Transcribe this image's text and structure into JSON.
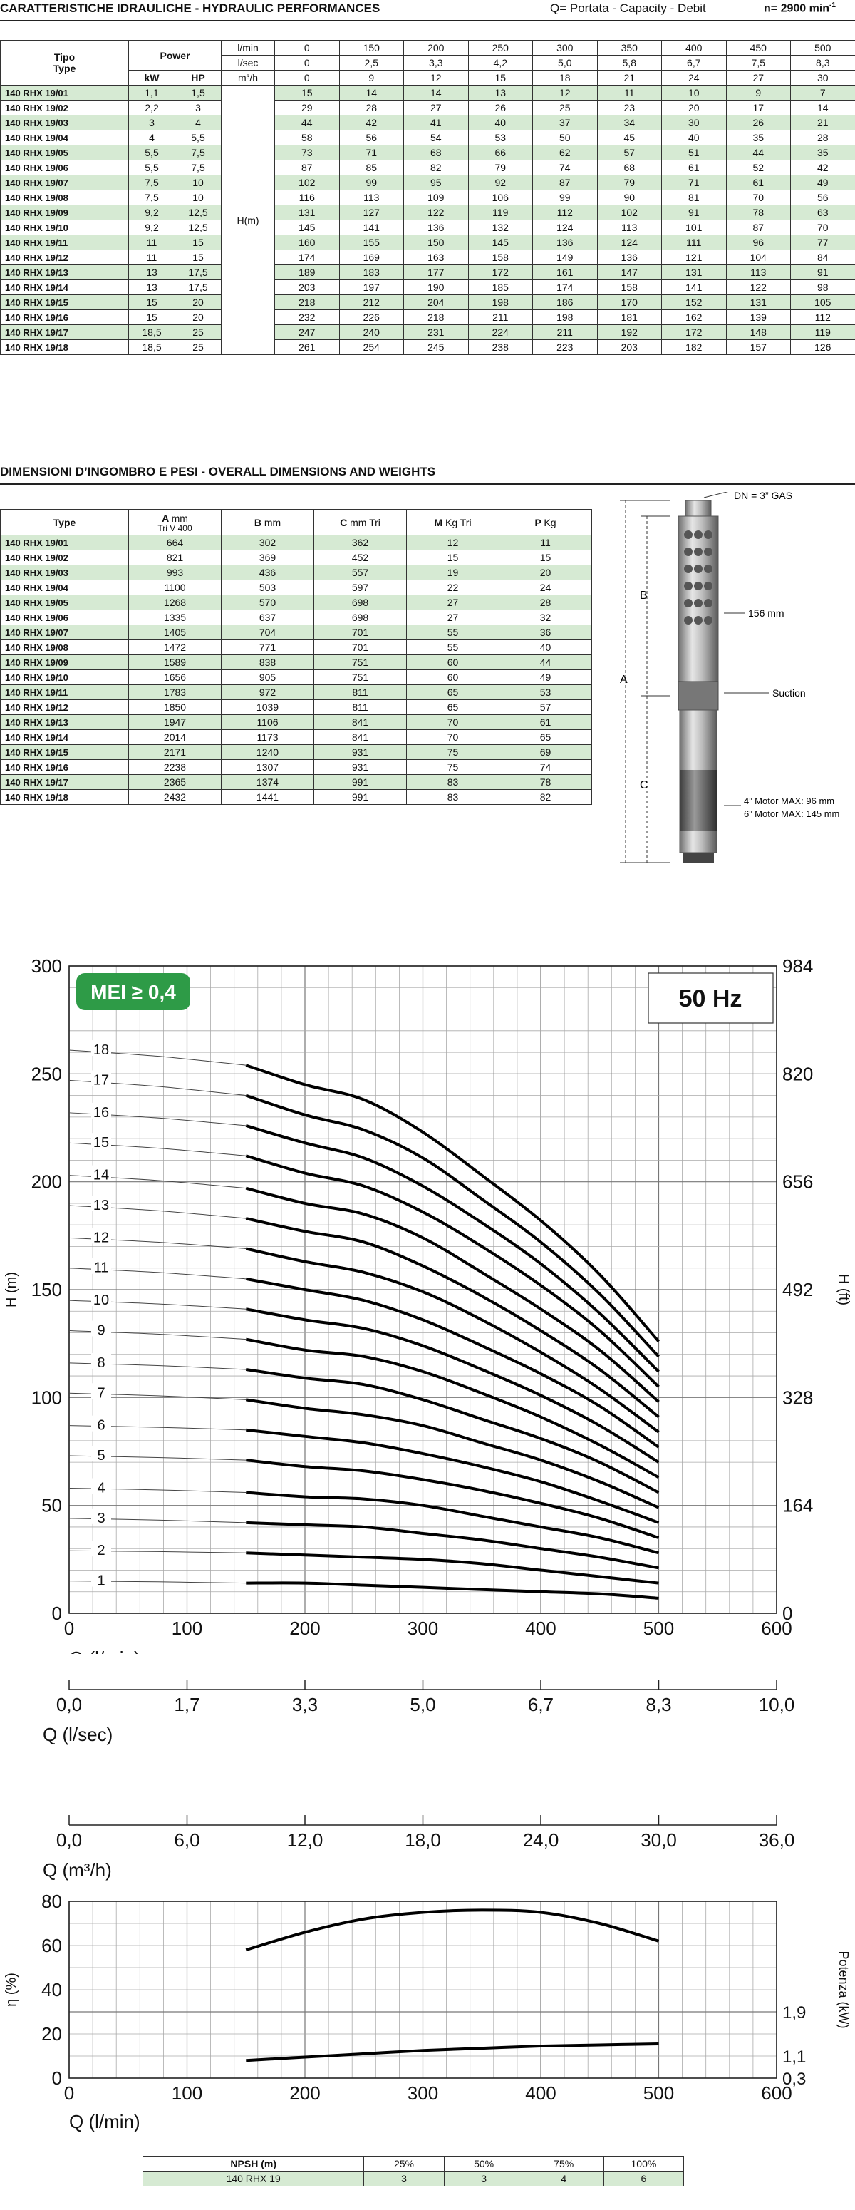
{
  "hydraulic": {
    "title": "CARATTERISTICHE IDRAULICHE - HYDRAULIC PERFORMANCES",
    "note": "Q= Portata - Capacity - Debit",
    "speed": "n= 2900 min",
    "speed_sup": "-1",
    "col_tipo": "Tipo",
    "col_type": "Type",
    "col_power": "Power",
    "col_kw": "kW",
    "col_hp": "HP",
    "unit_lmin": "l/min",
    "unit_lsec": "l/sec",
    "unit_m3h": "m³/h",
    "hm_label": "H(m)",
    "q_lmin": [
      "0",
      "150",
      "200",
      "250",
      "300",
      "350",
      "400",
      "450",
      "500"
    ],
    "q_lsec": [
      "0",
      "2,5",
      "3,3",
      "4,2",
      "5,0",
      "5,8",
      "6,7",
      "7,5",
      "8,3"
    ],
    "q_m3h": [
      "0",
      "9",
      "12",
      "15",
      "18",
      "21",
      "24",
      "27",
      "30"
    ],
    "rows": [
      {
        "type": "140 RHX 19/01",
        "kw": "1,1",
        "hp": "1,5",
        "h": [
          "15",
          "14",
          "14",
          "13",
          "12",
          "11",
          "10",
          "9",
          "7"
        ]
      },
      {
        "type": "140 RHX 19/02",
        "kw": "2,2",
        "hp": "3",
        "h": [
          "29",
          "28",
          "27",
          "26",
          "25",
          "23",
          "20",
          "17",
          "14"
        ]
      },
      {
        "type": "140 RHX 19/03",
        "kw": "3",
        "hp": "4",
        "h": [
          "44",
          "42",
          "41",
          "40",
          "37",
          "34",
          "30",
          "26",
          "21"
        ]
      },
      {
        "type": "140 RHX 19/04",
        "kw": "4",
        "hp": "5,5",
        "h": [
          "58",
          "56",
          "54",
          "53",
          "50",
          "45",
          "40",
          "35",
          "28"
        ]
      },
      {
        "type": "140 RHX 19/05",
        "kw": "5,5",
        "hp": "7,5",
        "h": [
          "73",
          "71",
          "68",
          "66",
          "62",
          "57",
          "51",
          "44",
          "35"
        ]
      },
      {
        "type": "140 RHX 19/06",
        "kw": "5,5",
        "hp": "7,5",
        "h": [
          "87",
          "85",
          "82",
          "79",
          "74",
          "68",
          "61",
          "52",
          "42"
        ]
      },
      {
        "type": "140 RHX 19/07",
        "kw": "7,5",
        "hp": "10",
        "h": [
          "102",
          "99",
          "95",
          "92",
          "87",
          "79",
          "71",
          "61",
          "49"
        ]
      },
      {
        "type": "140 RHX 19/08",
        "kw": "7,5",
        "hp": "10",
        "h": [
          "116",
          "113",
          "109",
          "106",
          "99",
          "90",
          "81",
          "70",
          "56"
        ]
      },
      {
        "type": "140 RHX 19/09",
        "kw": "9,2",
        "hp": "12,5",
        "h": [
          "131",
          "127",
          "122",
          "119",
          "112",
          "102",
          "91",
          "78",
          "63"
        ]
      },
      {
        "type": "140 RHX 19/10",
        "kw": "9,2",
        "hp": "12,5",
        "h": [
          "145",
          "141",
          "136",
          "132",
          "124",
          "113",
          "101",
          "87",
          "70"
        ]
      },
      {
        "type": "140 RHX 19/11",
        "kw": "11",
        "hp": "15",
        "h": [
          "160",
          "155",
          "150",
          "145",
          "136",
          "124",
          "111",
          "96",
          "77"
        ]
      },
      {
        "type": "140 RHX 19/12",
        "kw": "11",
        "hp": "15",
        "h": [
          "174",
          "169",
          "163",
          "158",
          "149",
          "136",
          "121",
          "104",
          "84"
        ]
      },
      {
        "type": "140 RHX 19/13",
        "kw": "13",
        "hp": "17,5",
        "h": [
          "189",
          "183",
          "177",
          "172",
          "161",
          "147",
          "131",
          "113",
          "91"
        ]
      },
      {
        "type": "140 RHX 19/14",
        "kw": "13",
        "hp": "17,5",
        "h": [
          "203",
          "197",
          "190",
          "185",
          "174",
          "158",
          "141",
          "122",
          "98"
        ]
      },
      {
        "type": "140 RHX 19/15",
        "kw": "15",
        "hp": "20",
        "h": [
          "218",
          "212",
          "204",
          "198",
          "186",
          "170",
          "152",
          "131",
          "105"
        ]
      },
      {
        "type": "140 RHX 19/16",
        "kw": "15",
        "hp": "20",
        "h": [
          "232",
          "226",
          "218",
          "211",
          "198",
          "181",
          "162",
          "139",
          "112"
        ]
      },
      {
        "type": "140 RHX 19/17",
        "kw": "18,5",
        "hp": "25",
        "h": [
          "247",
          "240",
          "231",
          "224",
          "211",
          "192",
          "172",
          "148",
          "119"
        ]
      },
      {
        "type": "140 RHX 19/18",
        "kw": "18,5",
        "hp": "25",
        "h": [
          "261",
          "254",
          "245",
          "238",
          "223",
          "203",
          "182",
          "157",
          "126"
        ]
      }
    ]
  },
  "dimensions": {
    "title": "DIMENSIONI D’INGOMBRO E PESI - OVERALL DIMENSIONS AND WEIGHTS",
    "col_type": "Type",
    "col_a": "A",
    "col_a_unit": "mm",
    "col_a_sub": "Tri V 400",
    "col_b": "B",
    "col_b_unit": "mm",
    "col_c": "C",
    "col_c_unit": "mm Tri",
    "col_m": "M",
    "col_m_unit": "Kg Tri",
    "col_p": "P",
    "col_p_unit": "Kg",
    "rows": [
      {
        "type": "140 RHX 19/01",
        "a": "664",
        "b": "302",
        "c": "362",
        "m": "12",
        "p": "11"
      },
      {
        "type": "140 RHX 19/02",
        "a": "821",
        "b": "369",
        "c": "452",
        "m": "15",
        "p": "15"
      },
      {
        "type": "140 RHX 19/03",
        "a": "993",
        "b": "436",
        "c": "557",
        "m": "19",
        "p": "20"
      },
      {
        "type": "140 RHX 19/04",
        "a": "1100",
        "b": "503",
        "c": "597",
        "m": "22",
        "p": "24"
      },
      {
        "type": "140 RHX 19/05",
        "a": "1268",
        "b": "570",
        "c": "698",
        "m": "27",
        "p": "28"
      },
      {
        "type": "140 RHX 19/06",
        "a": "1335",
        "b": "637",
        "c": "698",
        "m": "27",
        "p": "32"
      },
      {
        "type": "140 RHX 19/07",
        "a": "1405",
        "b": "704",
        "c": "701",
        "m": "55",
        "p": "36"
      },
      {
        "type": "140 RHX 19/08",
        "a": "1472",
        "b": "771",
        "c": "701",
        "m": "55",
        "p": "40"
      },
      {
        "type": "140 RHX 19/09",
        "a": "1589",
        "b": "838",
        "c": "751",
        "m": "60",
        "p": "44"
      },
      {
        "type": "140 RHX 19/10",
        "a": "1656",
        "b": "905",
        "c": "751",
        "m": "60",
        "p": "49"
      },
      {
        "type": "140 RHX 19/11",
        "a": "1783",
        "b": "972",
        "c": "811",
        "m": "65",
        "p": "53"
      },
      {
        "type": "140 RHX 19/12",
        "a": "1850",
        "b": "1039",
        "c": "811",
        "m": "65",
        "p": "57"
      },
      {
        "type": "140 RHX 19/13",
        "a": "1947",
        "b": "1106",
        "c": "841",
        "m": "70",
        "p": "61"
      },
      {
        "type": "140 RHX 19/14",
        "a": "2014",
        "b": "1173",
        "c": "841",
        "m": "70",
        "p": "65"
      },
      {
        "type": "140 RHX 19/15",
        "a": "2171",
        "b": "1240",
        "c": "931",
        "m": "75",
        "p": "69"
      },
      {
        "type": "140 RHX 19/16",
        "a": "2238",
        "b": "1307",
        "c": "931",
        "m": "75",
        "p": "74"
      },
      {
        "type": "140 RHX 19/17",
        "a": "2365",
        "b": "1374",
        "c": "991",
        "m": "83",
        "p": "78"
      },
      {
        "type": "140 RHX 19/18",
        "a": "2432",
        "b": "1441",
        "c": "991",
        "m": "83",
        "p": "82"
      }
    ],
    "drawing": {
      "dn": "DN = 3” GAS",
      "dia": "156 mm",
      "suction": "Suction",
      "motor4": "4” Motor MAX: 96 mm",
      "motor6": "6” Motor MAX: 145 mm",
      "label_a": "A",
      "label_b": "B",
      "label_c": "C"
    }
  },
  "chart_data": [
    {
      "type": "line",
      "badge": "MEI ≥ 0,4",
      "badge_color": "#2e9b47",
      "freq_label": "50 Hz",
      "xlabel": "Q (l/min)",
      "ylabel": "H (m)",
      "ylabel_right": "H (ft)",
      "xlim": [
        0,
        600
      ],
      "ylim": [
        0,
        300
      ],
      "x_ticks": [
        "0",
        "100",
        "200",
        "300",
        "400",
        "500",
        "600"
      ],
      "y_ticks": [
        "0",
        "50",
        "100",
        "150",
        "200",
        "250",
        "300"
      ],
      "y_ticks_right": [
        "0",
        "164",
        "328",
        "492",
        "656",
        "820",
        "984"
      ],
      "x": [
        0,
        150,
        200,
        250,
        300,
        350,
        400,
        450,
        500
      ],
      "series": [
        {
          "name": "1",
          "values": [
            15,
            14,
            14,
            13,
            12,
            11,
            10,
            9,
            7
          ]
        },
        {
          "name": "2",
          "values": [
            29,
            28,
            27,
            26,
            25,
            23,
            20,
            17,
            14
          ]
        },
        {
          "name": "3",
          "values": [
            44,
            42,
            41,
            40,
            37,
            34,
            30,
            26,
            21
          ]
        },
        {
          "name": "4",
          "values": [
            58,
            56,
            54,
            53,
            50,
            45,
            40,
            35,
            28
          ]
        },
        {
          "name": "5",
          "values": [
            73,
            71,
            68,
            66,
            62,
            57,
            51,
            44,
            35
          ]
        },
        {
          "name": "6",
          "values": [
            87,
            85,
            82,
            79,
            74,
            68,
            61,
            52,
            42
          ]
        },
        {
          "name": "7",
          "values": [
            102,
            99,
            95,
            92,
            87,
            79,
            71,
            61,
            49
          ]
        },
        {
          "name": "8",
          "values": [
            116,
            113,
            109,
            106,
            99,
            90,
            81,
            70,
            56
          ]
        },
        {
          "name": "9",
          "values": [
            131,
            127,
            122,
            119,
            112,
            102,
            91,
            78,
            63
          ]
        },
        {
          "name": "10",
          "values": [
            145,
            141,
            136,
            132,
            124,
            113,
            101,
            87,
            70
          ]
        },
        {
          "name": "11",
          "values": [
            160,
            155,
            150,
            145,
            136,
            124,
            111,
            96,
            77
          ]
        },
        {
          "name": "12",
          "values": [
            174,
            169,
            163,
            158,
            149,
            136,
            121,
            104,
            84
          ]
        },
        {
          "name": "13",
          "values": [
            189,
            183,
            177,
            172,
            161,
            147,
            131,
            113,
            91
          ]
        },
        {
          "name": "14",
          "values": [
            203,
            197,
            190,
            185,
            174,
            158,
            141,
            122,
            98
          ]
        },
        {
          "name": "15",
          "values": [
            218,
            212,
            204,
            198,
            186,
            170,
            152,
            131,
            105
          ]
        },
        {
          "name": "16",
          "values": [
            232,
            226,
            218,
            211,
            198,
            181,
            162,
            139,
            112
          ]
        },
        {
          "name": "17",
          "values": [
            247,
            240,
            231,
            224,
            211,
            192,
            172,
            148,
            119
          ]
        },
        {
          "name": "18",
          "values": [
            261,
            254,
            245,
            238,
            223,
            203,
            182,
            157,
            126
          ]
        }
      ],
      "grid": true
    },
    {
      "type": "axis",
      "xlabel": "Q (l/sec)",
      "x_ticks": [
        "0,0",
        "1,7",
        "3,3",
        "5,0",
        "6,7",
        "8,3",
        "10,0"
      ],
      "xlim": [
        0,
        10
      ]
    },
    {
      "type": "axis",
      "xlabel": "Q (m³/h)",
      "x_ticks": [
        "0,0",
        "6,0",
        "12,0",
        "18,0",
        "24,0",
        "30,0",
        "36,0"
      ],
      "xlim": [
        0,
        36
      ]
    },
    {
      "type": "line",
      "xlabel": "Q (l/min)",
      "ylabel": "η (%)",
      "ylabel_right": "Potenza (kW)",
      "xlim": [
        0,
        600
      ],
      "ylim": [
        0,
        80
      ],
      "x_ticks": [
        "0",
        "100",
        "200",
        "300",
        "400",
        "500",
        "600"
      ],
      "y_ticks": [
        "0",
        "20",
        "40",
        "60",
        "80"
      ],
      "y_ticks_right": [
        "0,3",
        "1,1",
        "1,9"
      ],
      "series": [
        {
          "x": [
            150,
            200,
            250,
            300,
            350,
            400,
            450,
            500
          ],
          "values": [
            58,
            66,
            72,
            75,
            76,
            75,
            70,
            62
          ]
        },
        {
          "x": [
            150,
            200,
            250,
            300,
            350,
            400,
            450,
            500
          ],
          "values": [
            8,
            9.5,
            11,
            12.5,
            13.5,
            14.5,
            15,
            15.5
          ]
        }
      ],
      "grid": true
    }
  ],
  "npsh": {
    "header": "NPSH (m)",
    "cols": [
      "25%",
      "50%",
      "75%",
      "100%"
    ],
    "row_label": "140 RHX 19",
    "values": [
      "3",
      "3",
      "4",
      "6"
    ]
  }
}
